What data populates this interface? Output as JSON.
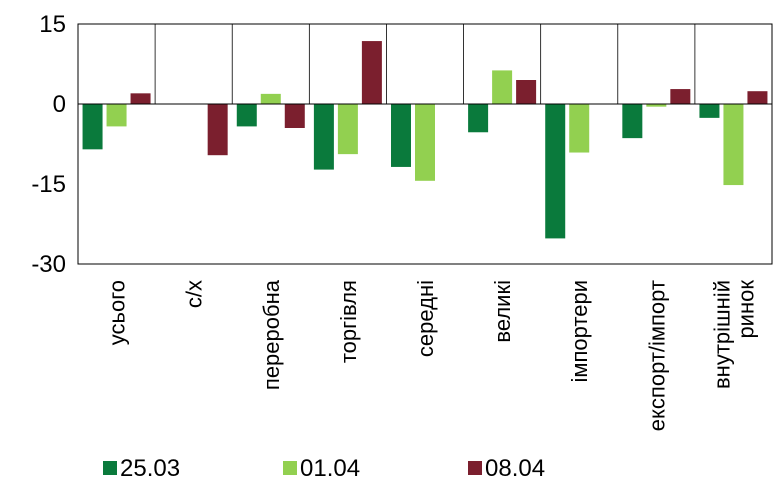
{
  "chart_data": {
    "type": "bar",
    "title": "",
    "xlabel": "",
    "ylabel": "",
    "categories": [
      "усього",
      "с/х",
      "переробна",
      "торгівля",
      "середні",
      "великі",
      "імпортери",
      "експорт/імпорт",
      "внутрішній ринок"
    ],
    "category_label_lines": [
      [
        "усього"
      ],
      [
        "с/х"
      ],
      [
        "переробна"
      ],
      [
        "торгівля"
      ],
      [
        "середні"
      ],
      [
        "великі"
      ],
      [
        "імпортери"
      ],
      [
        "експорт/імпорт"
      ],
      [
        "внутрішній",
        "ринок"
      ]
    ],
    "series": [
      {
        "name": "25.03",
        "color": "#0a7a3c",
        "values": [
          -8.5,
          0,
          -4.2,
          -12.3,
          -11.8,
          -5.3,
          -25.2,
          -6.4,
          -2.6
        ]
      },
      {
        "name": "01.04",
        "color": "#92d050",
        "values": [
          -4.2,
          0,
          1.9,
          -9.4,
          -14.4,
          6.3,
          -9.1,
          -0.5,
          -15.2
        ]
      },
      {
        "name": "08.04",
        "color": "#7b1f2e",
        "values": [
          2.0,
          -9.6,
          -4.5,
          11.8,
          0,
          4.5,
          0,
          2.8,
          2.4
        ]
      }
    ],
    "y_ticks": [
      "15",
      "0",
      "-15",
      "-30"
    ],
    "ylim": [
      -30,
      15
    ],
    "grid": "vertical separators between categories",
    "legend_position": "bottom"
  }
}
